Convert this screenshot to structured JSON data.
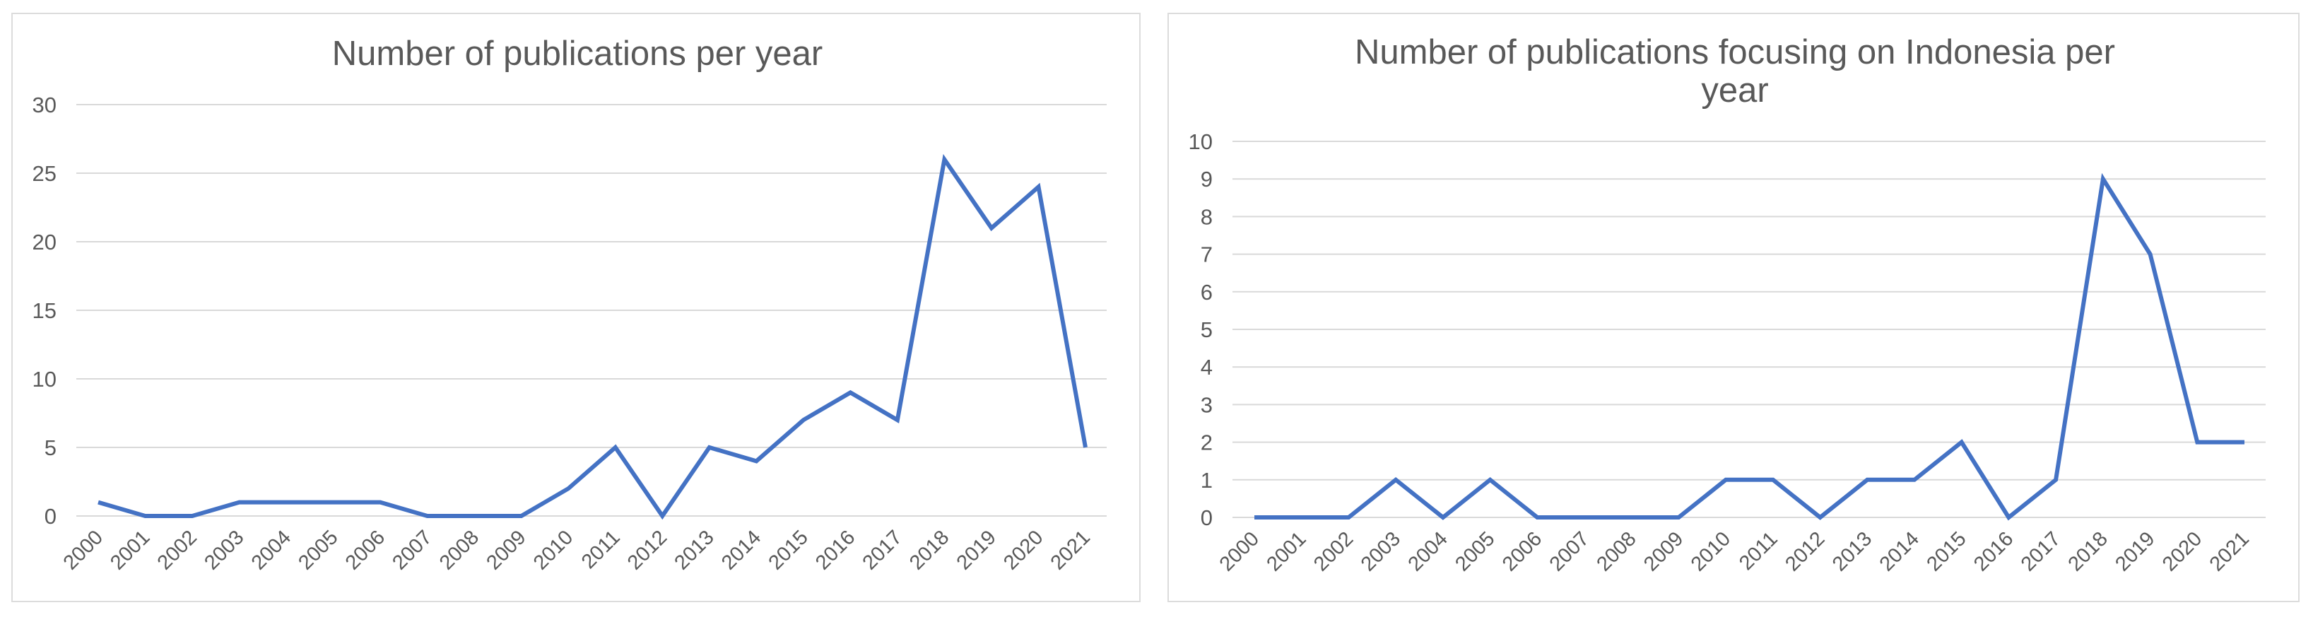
{
  "colors": {
    "series": "#4472C4",
    "grid": "#d9d9d9",
    "text": "#595959",
    "border": "#dcdcdc"
  },
  "chart_data": [
    {
      "type": "line",
      "title": "Number of publications per year",
      "title_lines": [
        "Number of publications per year"
      ],
      "xlabel": "",
      "ylabel": "",
      "categories": [
        "2000",
        "2001",
        "2002",
        "2003",
        "2004",
        "2005",
        "2006",
        "2007",
        "2008",
        "2009",
        "2010",
        "2011",
        "2012",
        "2013",
        "2014",
        "2015",
        "2016",
        "2017",
        "2018",
        "2019",
        "2020",
        "2021"
      ],
      "series": [
        {
          "values": [
            1,
            0,
            0,
            1,
            1,
            1,
            1,
            0,
            0,
            0,
            2,
            5,
            0,
            5,
            4,
            7,
            9,
            7,
            26,
            21,
            24,
            5
          ]
        }
      ],
      "ylim": [
        0,
        30
      ],
      "yticks": [
        0,
        5,
        10,
        15,
        20,
        25,
        30
      ],
      "grid": true,
      "legend": "none"
    },
    {
      "type": "line",
      "title": "Number of publications focusing on Indonesia per year",
      "title_lines": [
        "Number of publications focusing on Indonesia per",
        "year"
      ],
      "xlabel": "",
      "ylabel": "",
      "categories": [
        "2000",
        "2001",
        "2002",
        "2003",
        "2004",
        "2005",
        "2006",
        "2007",
        "2008",
        "2009",
        "2010",
        "2011",
        "2012",
        "2013",
        "2014",
        "2015",
        "2016",
        "2017",
        "2018",
        "2019",
        "2020",
        "2021"
      ],
      "series": [
        {
          "values": [
            0,
            0,
            0,
            1,
            0,
            1,
            0,
            0,
            0,
            0,
            1,
            1,
            0,
            1,
            1,
            2,
            0,
            1,
            9,
            7,
            2,
            2
          ]
        }
      ],
      "ylim": [
        0,
        10
      ],
      "yticks": [
        0,
        1,
        2,
        3,
        4,
        5,
        6,
        7,
        8,
        9,
        10
      ],
      "grid": true,
      "legend": "none"
    }
  ]
}
